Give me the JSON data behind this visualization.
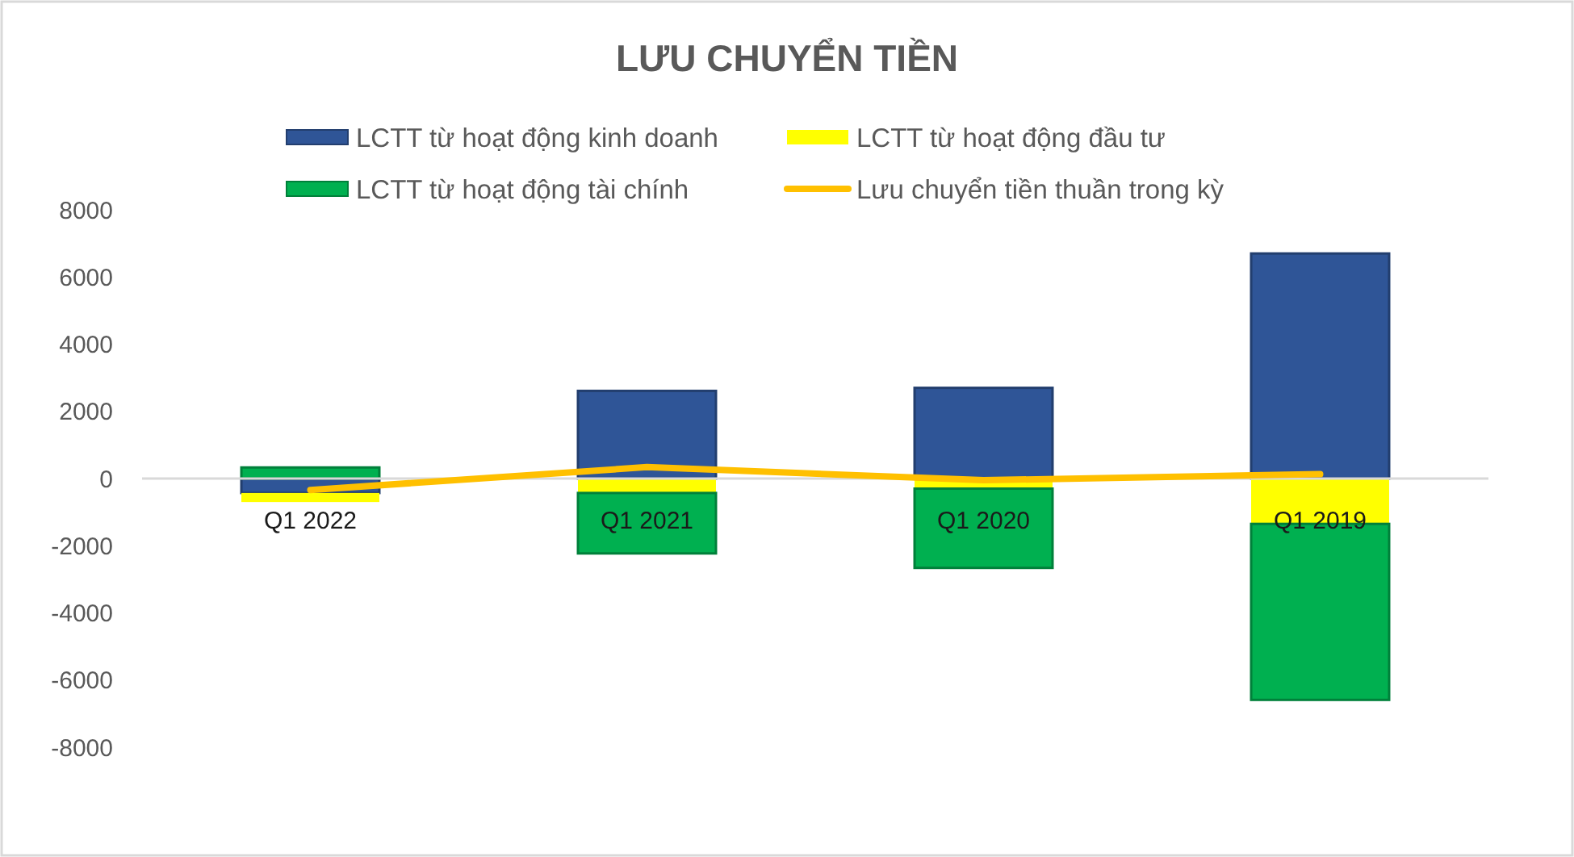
{
  "chart_data": {
    "type": "bar",
    "title": "LƯU CHUYỂN TIỀN",
    "categories": [
      "Q1 2022",
      "Q1 2021",
      "Q1 2020",
      "Q1 2019"
    ],
    "stacked": true,
    "series": [
      {
        "name": "LCTT từ hoạt động kinh doanh",
        "color": "#2f5597",
        "values": [
          -430,
          2610,
          2700,
          6700
        ]
      },
      {
        "name": "LCTT từ hoạt động đầu tư",
        "color": "#ffff00",
        "values": [
          -270,
          -430,
          -300,
          -1350
        ]
      },
      {
        "name": "LCTT từ hoạt động tài chính",
        "color": "#00b050",
        "values": [
          330,
          -1800,
          -2360,
          -5240
        ]
      },
      {
        "name": "Lưu chuyển tiền thuần trong kỳ",
        "type": "line",
        "color": "#ffc000",
        "values": [
          -340,
          340,
          -50,
          130
        ]
      }
    ],
    "ylim": [
      -8000,
      8000
    ],
    "yticks": [
      -8000,
      -6000,
      -4000,
      -2000,
      0,
      2000,
      4000,
      6000,
      8000
    ],
    "grid": false,
    "legend": "top"
  }
}
